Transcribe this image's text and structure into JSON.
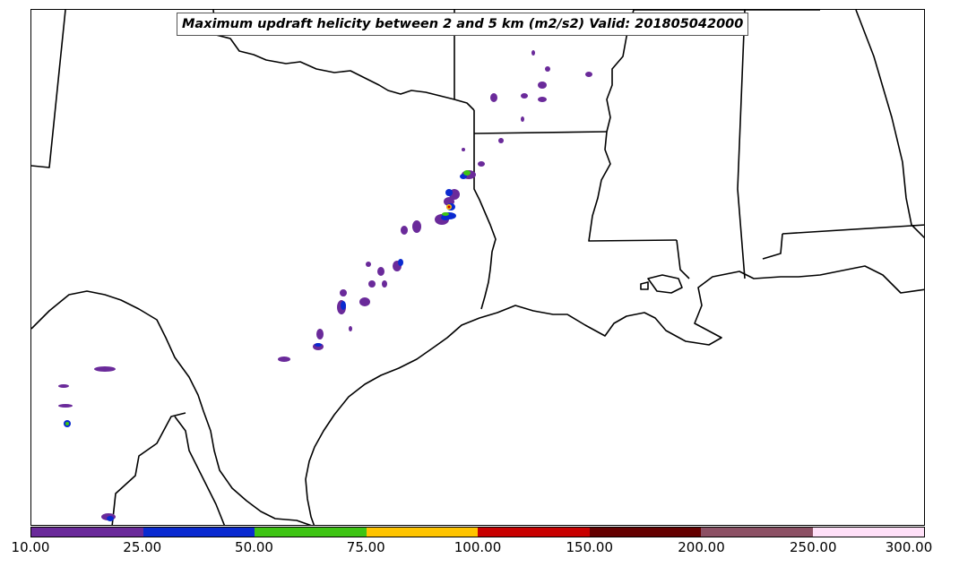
{
  "title": "Maximum updraft helicity between 2 and 5 km (m2/s2) Valid: 201805042000",
  "colorbar": {
    "labels": [
      "10.00",
      "25.00",
      "50.00",
      "75.00",
      "100.00",
      "150.00",
      "200.00",
      "250.00",
      "300.00"
    ],
    "colors": [
      "#6a2a9a",
      "#0a2ad0",
      "#3ec414",
      "#ffc400",
      "#c80000",
      "#640000",
      "#8c5064",
      "#ffe0f8"
    ]
  },
  "map": {
    "boundary_color": "#000000",
    "background": "#ffffff"
  }
}
